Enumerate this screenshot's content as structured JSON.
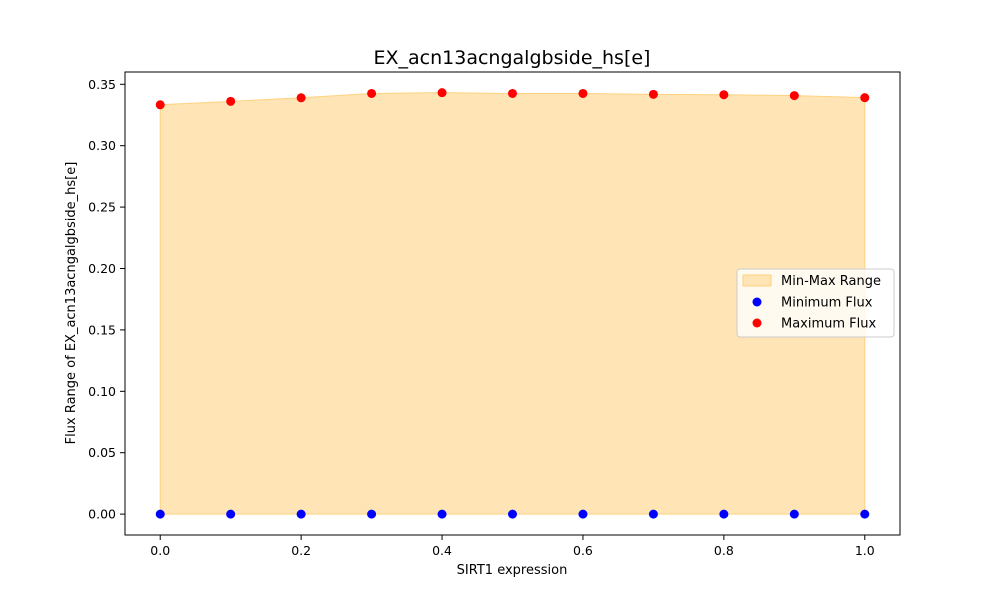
{
  "chart_data": {
    "type": "scatter",
    "title": "EX_acn13acngalgbside_hs[e]",
    "xlabel": "SIRT1 expression",
    "ylabel": "Flux Range of EX_acn13acngalgbside_hs[e]",
    "xlim": [
      -0.05,
      1.05
    ],
    "ylim": [
      -0.017,
      0.36
    ],
    "xticks": [
      "0.0",
      "0.2",
      "0.4",
      "0.6",
      "0.8",
      "1.0"
    ],
    "yticks": [
      "0.00",
      "0.05",
      "0.10",
      "0.15",
      "0.20",
      "0.25",
      "0.30",
      "0.35"
    ],
    "x": [
      0.0,
      0.1,
      0.2,
      0.3,
      0.4,
      0.5,
      0.6,
      0.7,
      0.8,
      0.9,
      1.0
    ],
    "series": [
      {
        "name": "Minimum Flux",
        "color": "#0000ff",
        "values": [
          0,
          0,
          0,
          0,
          0,
          0,
          0,
          0,
          0,
          0,
          0
        ]
      },
      {
        "name": "Maximum Flux",
        "color": "#ff0000",
        "values": [
          0.3333,
          0.3361,
          0.339,
          0.3425,
          0.3432,
          0.3425,
          0.3425,
          0.3418,
          0.3415,
          0.3408,
          0.3391
        ]
      }
    ],
    "fill": {
      "name": "Min-Max Range",
      "color": "#ffe4b5",
      "edge": "#ffd280"
    },
    "legend_position": "center-right",
    "grid": false
  }
}
